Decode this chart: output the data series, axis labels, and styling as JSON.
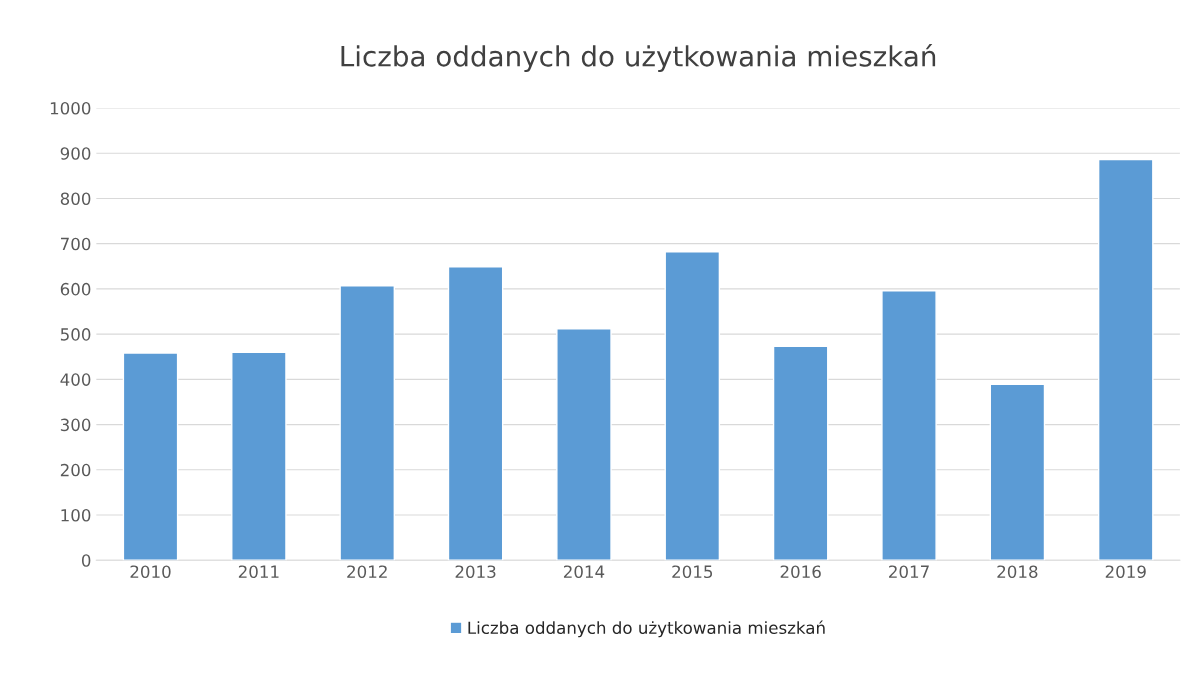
{
  "chart_data": {
    "type": "bar",
    "title": "Liczba oddanych do użytkowania mieszkań",
    "categories": [
      "2010",
      "2011",
      "2012",
      "2013",
      "2014",
      "2015",
      "2016",
      "2017",
      "2018",
      "2019"
    ],
    "series": [
      {
        "name": "Liczba oddanych do użytkowania mieszkań",
        "color": "#5b9bd5",
        "values": [
          458,
          460,
          607,
          649,
          512,
          682,
          473,
          596,
          389,
          886
        ]
      }
    ],
    "ylim": [
      0,
      1000
    ],
    "yticks": [
      0,
      100,
      200,
      300,
      400,
      500,
      600,
      700,
      800,
      900,
      1000
    ],
    "grid": "y",
    "legend": "bottom"
  }
}
